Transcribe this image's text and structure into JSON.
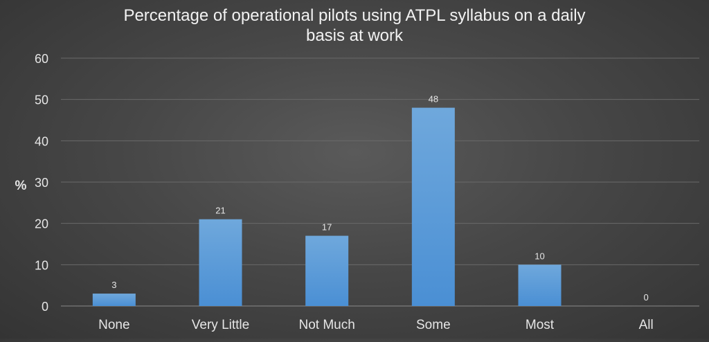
{
  "chart_data": {
    "type": "bar",
    "title_lines": [
      "Percentage of operational pilots using ATPL syllabus on a daily",
      "basis at work"
    ],
    "xlabel": "",
    "ylabel": "%",
    "categories": [
      "None",
      "Very Little",
      "Not Much",
      "Some",
      "Most",
      "All"
    ],
    "values": [
      3,
      21,
      17,
      48,
      10,
      0
    ],
    "data_labels": [
      "3",
      "21",
      "17",
      "48",
      "10",
      "0"
    ],
    "ylim": [
      0,
      60
    ],
    "yticks": [
      "0",
      "10",
      "20",
      "30",
      "40",
      "50",
      "60"
    ],
    "grid": true,
    "legend": "none",
    "colors": {
      "bar_top": "#6fa8dc",
      "bar_bottom": "#4a8fd4",
      "gridline": "#6a6a6a",
      "text": "#e6e6e6"
    }
  }
}
